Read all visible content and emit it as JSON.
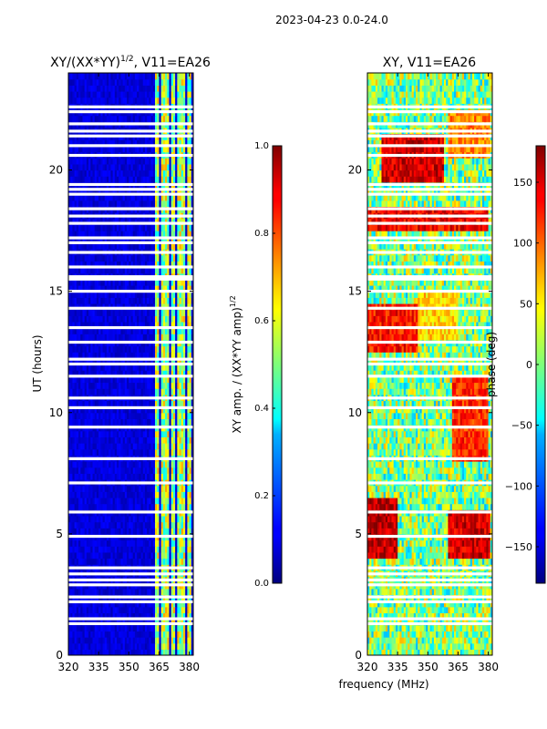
{
  "figure_title": "2023-04-23 0.0-24.0",
  "shared_xlabel": "frequency (MHz)",
  "chart_data": [
    {
      "type": "heatmap",
      "title": "XY/(XX*YY)^{1/2}, V11=EA26",
      "title_main": "XY/(XX*YY)",
      "title_sup": "1/2",
      "title_tail": ", V11=EA26",
      "xlabel": "frequency (MHz)",
      "ylabel": "UT (hours)",
      "xlim": [
        320,
        382
      ],
      "ylim": [
        0,
        24
      ],
      "x_ticks": [
        320,
        335,
        350,
        365,
        380
      ],
      "y_ticks": [
        0,
        5,
        10,
        15,
        20
      ],
      "colorbar": {
        "label": "XY amp. / (XX*YY amp)^{1/2}",
        "label_main": "XY amp. / (XX*YY amp)",
        "label_sup": "1/2",
        "range": [
          0.0,
          1.0
        ],
        "ticks": [
          "0.0",
          "0.2",
          "0.4",
          "0.6",
          "0.8",
          "1.0"
        ],
        "colormap": "jet"
      },
      "bright_channels_mhz": [
        364,
        367,
        369,
        372,
        375,
        377,
        380
      ],
      "bright_amplitude": 0.55,
      "background_amplitude": 0.05,
      "flagged_hours": [
        1.3,
        1.5,
        2.2,
        2.4,
        2.9,
        3.1,
        3.35,
        3.6,
        4.9,
        5.9,
        7.1,
        8.1,
        9.4,
        10.2,
        10.6,
        11.5,
        12.0,
        12.2,
        12.9,
        13.5,
        14.3,
        15.0,
        15.5,
        15.6,
        16.0,
        16.6,
        17.0,
        17.2,
        17.8,
        18.1,
        18.4,
        19.0,
        19.2,
        19.4,
        20.6,
        21.0,
        21.4,
        21.6,
        21.9,
        22.4,
        22.6
      ]
    },
    {
      "type": "heatmap",
      "title": "XY, V11=EA26",
      "xlabel": "frequency (MHz)",
      "ylabel": "",
      "xlim": [
        320,
        382
      ],
      "ylim": [
        0,
        24
      ],
      "x_ticks": [
        320,
        335,
        350,
        365,
        380
      ],
      "y_ticks": [
        0,
        5,
        10,
        15,
        20
      ],
      "colorbar": {
        "label": "phase (deg)",
        "range": [
          -180,
          180
        ],
        "ticks": [
          "150",
          "100",
          "50",
          "0",
          "−50",
          "−100",
          "−150"
        ],
        "tick_values": [
          150,
          100,
          50,
          0,
          -50,
          -100,
          -150
        ],
        "colormap": "jet"
      },
      "phase_patches": [
        {
          "f0": 327,
          "f1": 358,
          "h0": 19.5,
          "h1": 21.5,
          "deg": 150
        },
        {
          "f0": 360,
          "f1": 381,
          "h0": 20.5,
          "h1": 22.5,
          "deg": 90
        },
        {
          "f0": 362,
          "f1": 380,
          "h0": 8.0,
          "h1": 11.5,
          "deg": 120
        },
        {
          "f0": 320,
          "f1": 335,
          "h0": 4.0,
          "h1": 6.5,
          "deg": 160
        },
        {
          "f0": 360,
          "f1": 381,
          "h0": 4.0,
          "h1": 6.0,
          "deg": 150
        },
        {
          "f0": 320,
          "f1": 345,
          "h0": 12.5,
          "h1": 14.5,
          "deg": 130
        },
        {
          "f0": 345,
          "f1": 365,
          "h0": 13.0,
          "h1": 15.0,
          "deg": 60
        },
        {
          "f0": 320,
          "f1": 380,
          "h0": 17.5,
          "h1": 18.5,
          "deg": 140
        }
      ],
      "flagged_hours": [
        1.3,
        1.5,
        2.2,
        2.4,
        2.9,
        3.1,
        3.35,
        3.6,
        4.9,
        5.9,
        7.1,
        8.1,
        9.4,
        10.2,
        10.6,
        11.5,
        12.0,
        12.2,
        12.9,
        13.5,
        14.3,
        15.0,
        15.5,
        15.6,
        16.0,
        16.6,
        17.0,
        17.2,
        17.8,
        18.1,
        18.4,
        19.0,
        19.2,
        19.4,
        20.6,
        21.0,
        21.4,
        21.6,
        21.9,
        22.4,
        22.6
      ]
    }
  ]
}
